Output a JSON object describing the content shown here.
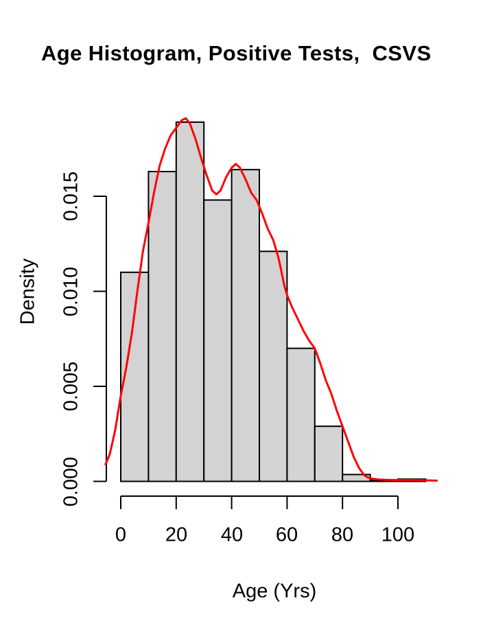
{
  "figure": {
    "background": "#FFFFFF"
  },
  "chart_data": {
    "type": "bar",
    "subtype": "histogram-with-density-overlay",
    "title": "Age Histogram, Positive Tests,  CSVS",
    "xlabel": "Age (Yrs)",
    "ylabel": "Density",
    "bar_fill": "#D3D3D3",
    "bar_border": "#000000",
    "density_color": "#FF0000",
    "axis_color": "#000000",
    "grid": "off",
    "legend": "none",
    "xlim": [
      -6,
      115
    ],
    "ylim": [
      0,
      0.019
    ],
    "x_ticks": [
      {
        "value": 0,
        "label": "0"
      },
      {
        "value": 20,
        "label": "20"
      },
      {
        "value": 40,
        "label": "40"
      },
      {
        "value": 60,
        "label": "60"
      },
      {
        "value": 80,
        "label": "80"
      },
      {
        "value": 100,
        "label": "100"
      }
    ],
    "y_ticks": [
      {
        "value": 0.0,
        "label": "0.000"
      },
      {
        "value": 0.005,
        "label": "0.005"
      },
      {
        "value": 0.01,
        "label": "0.010"
      },
      {
        "value": 0.015,
        "label": "0.015"
      }
    ],
    "histogram": {
      "breaks": [
        0,
        10,
        20,
        30,
        40,
        50,
        60,
        70,
        80,
        90,
        100,
        110
      ],
      "densities": [
        0.011,
        0.0163,
        0.0189,
        0.0148,
        0.0164,
        0.0121,
        0.007,
        0.0029,
        0.00036,
        5e-05,
        0.00012
      ]
    },
    "density_curve": {
      "x": [
        -5.5,
        -4,
        -2,
        0,
        2,
        4,
        6,
        8,
        10,
        12,
        14,
        16,
        18,
        20,
        22,
        23.5,
        25,
        27,
        29,
        31,
        33,
        34.5,
        36,
        38,
        40,
        41.5,
        43,
        45,
        47,
        49,
        51,
        53,
        55,
        57,
        59,
        60,
        62,
        64,
        66,
        68,
        70,
        72,
        74,
        76,
        78,
        80,
        82,
        84,
        86,
        88,
        90,
        93,
        96,
        100,
        104,
        108,
        111,
        114
      ],
      "y": [
        0.0009,
        0.0014,
        0.0027,
        0.0045,
        0.006,
        0.0078,
        0.01,
        0.0121,
        0.0136,
        0.0152,
        0.0166,
        0.0175,
        0.0182,
        0.0186,
        0.019,
        0.0191,
        0.0188,
        0.018,
        0.017,
        0.0161,
        0.0153,
        0.0151,
        0.0153,
        0.016,
        0.0165,
        0.0167,
        0.0165,
        0.0159,
        0.0152,
        0.0148,
        0.0141,
        0.0133,
        0.0127,
        0.0117,
        0.0103,
        0.0098,
        0.0091,
        0.0085,
        0.0079,
        0.0074,
        0.007,
        0.0062,
        0.0053,
        0.0046,
        0.0037,
        0.0029,
        0.0021,
        0.0013,
        0.0007,
        0.0003,
        0.00015,
        0.0001,
        8e-05,
        7e-05,
        7e-05,
        6e-05,
        5e-05,
        4e-05
      ]
    }
  }
}
